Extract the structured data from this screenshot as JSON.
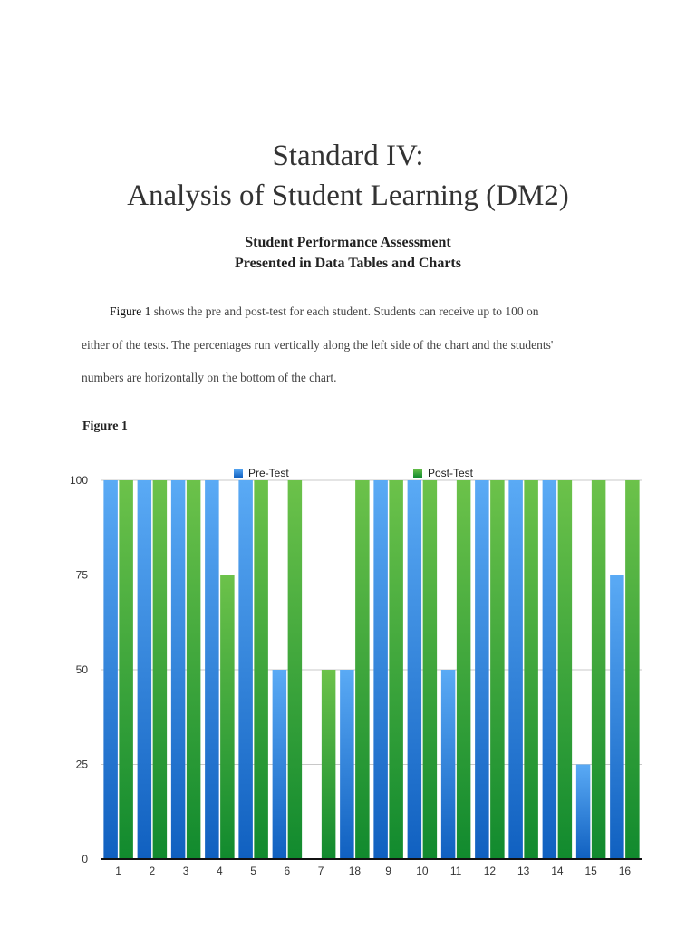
{
  "header": {
    "title_line1": "Standard IV:",
    "title_line2": "Analysis of Student Learning (DM2)",
    "subtitle_line1": "Student Performance Assessment",
    "subtitle_line2": "Presented in Data Tables and Charts"
  },
  "body": {
    "para_lead": "Figure 1",
    "para_line1_rest": " shows the pre and post-test for each student. Students can receive up to 100 on",
    "para_line2": "either of the tests. The percentages run vertically along the left side of the chart and the students'",
    "para_line3": "numbers are horizontally on the bottom of the chart."
  },
  "figure_label": "Figure 1",
  "chart_data": {
    "type": "bar",
    "title": "",
    "xlabel": "",
    "ylabel": "",
    "ylim": [
      0,
      100
    ],
    "yticks": [
      0,
      25,
      50,
      75,
      100
    ],
    "grid": true,
    "legend_position": "top",
    "categories": [
      "1",
      "2",
      "3",
      "4",
      "5",
      "6",
      "7",
      "18",
      "9",
      "10",
      "11",
      "12",
      "13",
      "14",
      "15",
      "16"
    ],
    "series": [
      {
        "name": "Pre-Test",
        "color": "#3b8ee6",
        "values": [
          100,
          100,
          100,
          100,
          100,
          50,
          0,
          50,
          100,
          100,
          50,
          100,
          100,
          100,
          25,
          75
        ]
      },
      {
        "name": "Post-Test",
        "color": "#3aa63a",
        "values": [
          100,
          100,
          100,
          75,
          100,
          100,
          50,
          100,
          100,
          100,
          100,
          100,
          100,
          100,
          100,
          100
        ]
      }
    ]
  }
}
